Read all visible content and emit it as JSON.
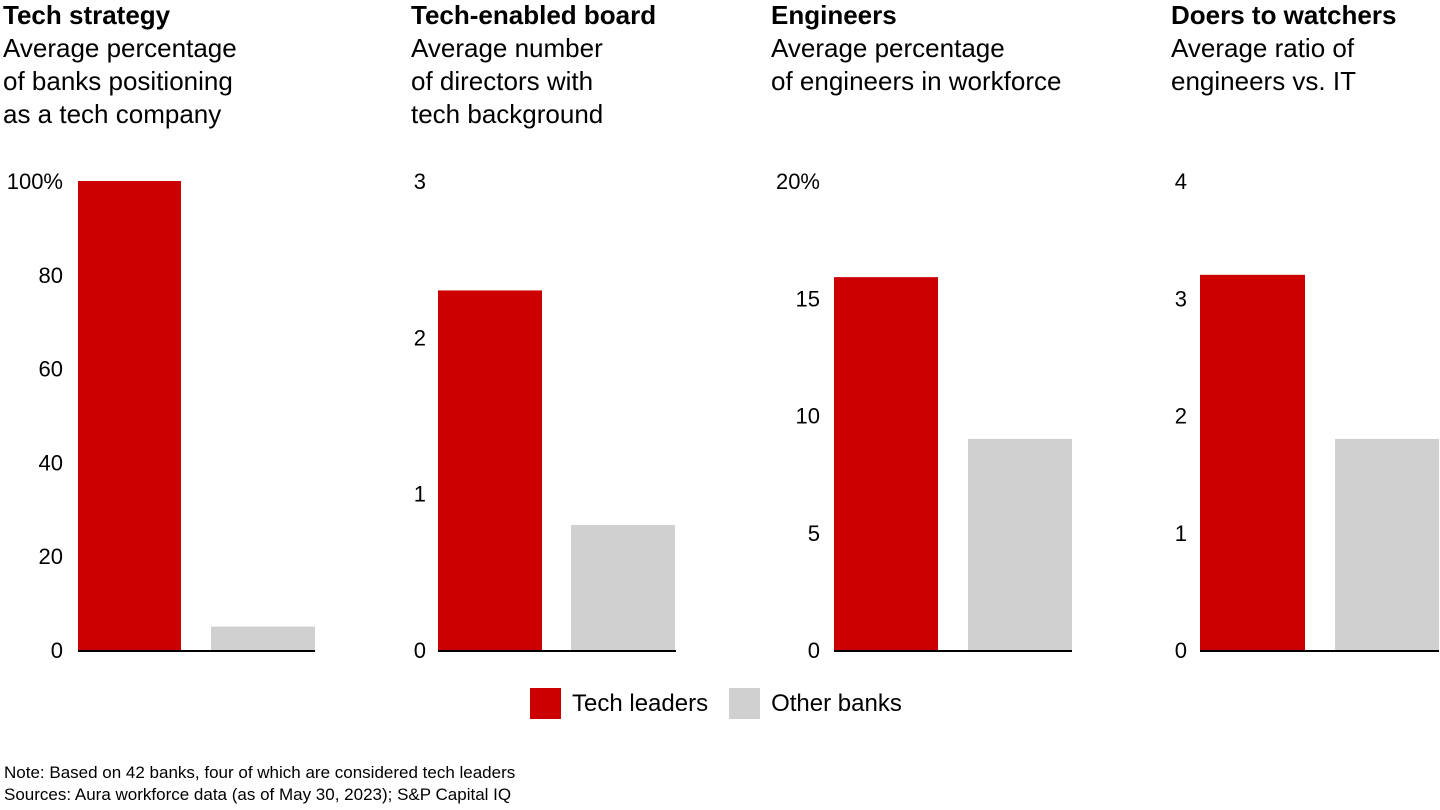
{
  "colors": {
    "tech_leaders": "#cc0000",
    "other_banks": "#d0d0d0",
    "axis": "#000000"
  },
  "legend": {
    "tech_leaders": "Tech leaders",
    "other_banks": "Other banks"
  },
  "notes": {
    "note": "Note: Based on 42 banks, four of which are considered tech leaders",
    "sources": "Sources: Aura workforce data (as of May 30, 2023); S&P Capital IQ"
  },
  "panels": [
    {
      "title": "Tech strategy",
      "subtitle": "Average percentage\nof banks positioning\nas a tech company"
    },
    {
      "title": "Tech-enabled board",
      "subtitle": "Average number\nof directors with\ntech background"
    },
    {
      "title": "Engineers",
      "subtitle": "Average percentage\nof engineers in workforce"
    },
    {
      "title": "Doers to watchers",
      "subtitle": "Average ratio of\nengineers vs. IT"
    }
  ],
  "chart_data": [
    {
      "type": "bar",
      "title": "Tech strategy",
      "ylabel": "Average percentage of banks positioning as a tech company",
      "categories": [
        "Tech leaders",
        "Other banks"
      ],
      "values": [
        100,
        5
      ],
      "ylim": [
        0,
        100
      ],
      "ticks": [
        0,
        20,
        40,
        60,
        80,
        100
      ],
      "tick_labels": [
        "0",
        "20",
        "40",
        "60",
        "80",
        "100%"
      ]
    },
    {
      "type": "bar",
      "title": "Tech-enabled board",
      "ylabel": "Average number of directors with tech background",
      "categories": [
        "Tech leaders",
        "Other banks"
      ],
      "values": [
        2.3,
        0.8
      ],
      "ylim": [
        0,
        3
      ],
      "ticks": [
        0,
        1,
        2,
        3
      ],
      "tick_labels": [
        "0",
        "1",
        "2",
        "3"
      ]
    },
    {
      "type": "bar",
      "title": "Engineers",
      "ylabel": "Average percentage of engineers in workforce",
      "categories": [
        "Tech leaders",
        "Other banks"
      ],
      "values": [
        15.9,
        9
      ],
      "ylim": [
        0,
        20
      ],
      "ticks": [
        0,
        5,
        10,
        15,
        20
      ],
      "tick_labels": [
        "0",
        "5",
        "10",
        "15",
        "20%"
      ]
    },
    {
      "type": "bar",
      "title": "Doers to watchers",
      "ylabel": "Average ratio of engineers vs. IT",
      "categories": [
        "Tech leaders",
        "Other banks"
      ],
      "values": [
        3.2,
        1.8
      ],
      "ylim": [
        0,
        4
      ],
      "ticks": [
        0,
        1,
        2,
        3,
        4
      ],
      "tick_labels": [
        "0",
        "1",
        "2",
        "3",
        "4"
      ]
    }
  ]
}
